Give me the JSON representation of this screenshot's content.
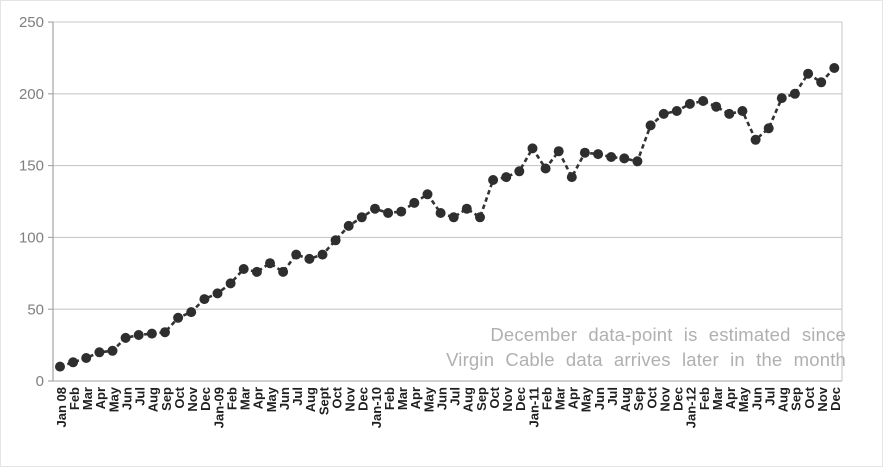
{
  "chart_data": {
    "type": "line",
    "title": "",
    "xlabel": "",
    "ylabel": "",
    "ylim": [
      0,
      250
    ],
    "yticks": [
      0,
      50,
      100,
      150,
      200,
      250
    ],
    "grid": "horizontal",
    "legend": "none",
    "marker": "filled-circle",
    "line_style": "dashed",
    "categories": [
      "Jan 08",
      "Feb",
      "Mar",
      "Apr",
      "May",
      "Jun",
      "Jul",
      "Aug",
      "Sep",
      "Oct",
      "Nov",
      "Dec",
      "Jan-09",
      "Feb",
      "Mar",
      "Apr",
      "May",
      "Jun",
      "Jul",
      "Aug",
      "Sept",
      "Oct",
      "Nov",
      "Dec",
      "Jan-10",
      "Feb",
      "Mar",
      "Apr",
      "May",
      "Jun",
      "Jul",
      "Aug",
      "Sep",
      "Oct",
      "Nov",
      "Dec",
      "Jan-11",
      "Feb",
      "Mar",
      "Apr",
      "May",
      "Jun",
      "Jul",
      "Aug",
      "Sep",
      "Oct",
      "Nov",
      "Dec",
      "Jan-12",
      "Feb",
      "Mar",
      "Apr",
      "May",
      "Jun",
      "Jul",
      "Aug",
      "Sep",
      "Oct",
      "Nov",
      "Dec"
    ],
    "values": [
      10,
      13,
      16,
      20,
      21,
      30,
      32,
      33,
      34,
      44,
      48,
      57,
      61,
      68,
      78,
      76,
      82,
      76,
      88,
      85,
      88,
      98,
      108,
      114,
      120,
      117,
      118,
      124,
      130,
      117,
      114,
      120,
      114,
      140,
      142,
      146,
      162,
      148,
      160,
      142,
      159,
      158,
      156,
      155,
      153,
      178,
      186,
      188,
      193,
      195,
      191,
      186,
      188,
      168,
      176,
      197,
      200,
      214,
      208,
      218
    ],
    "colors": {
      "series": "#2e2e2e",
      "line": "#333333",
      "gridline": "#c9c9c9",
      "axis": "#a3a3a3",
      "right_border": "#c9c9c9",
      "ytick_label": "#7f7f7f",
      "xtick_label": "#1f1f1f"
    },
    "annotation": {
      "lines": [
        "December data-point is estimated since",
        "Virgin Cable data arrives later in the month"
      ],
      "color": "#b0b0b0",
      "position": "bottom-right"
    }
  }
}
